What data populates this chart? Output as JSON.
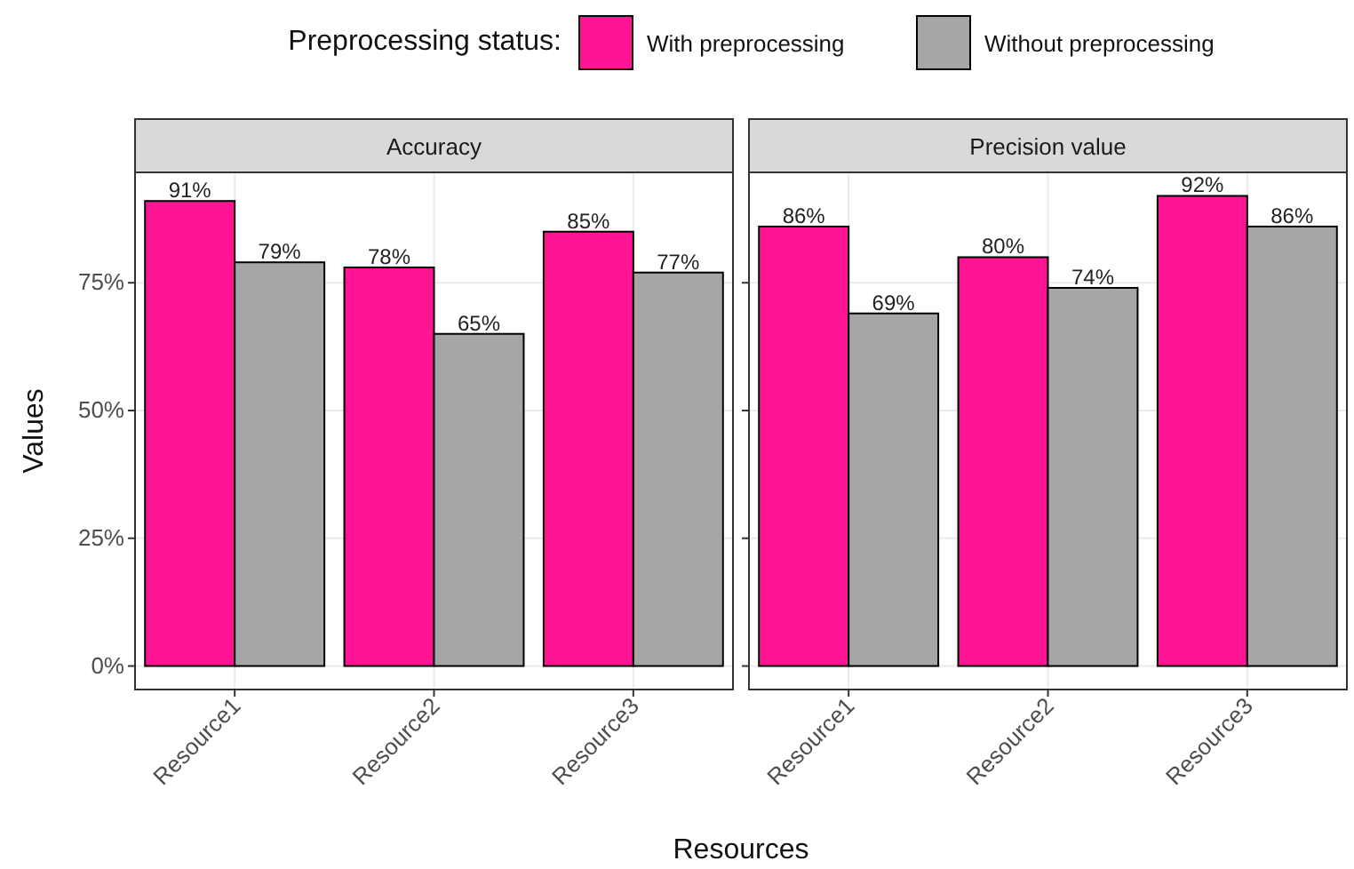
{
  "chart_data": [
    {
      "type": "bar",
      "title": "Accuracy",
      "ylabel": "Values",
      "xlabel": "Resources",
      "legend_title": "Preprocessing status:",
      "legend": "top",
      "grid": true,
      "categories": [
        "Resource1",
        "Resource2",
        "Resource3"
      ],
      "ylim": [
        -4.6,
        96.6
      ],
      "yticks": [
        {
          "value": 0,
          "label": "0%"
        },
        {
          "value": 25,
          "label": "25%"
        },
        {
          "value": 50,
          "label": "50%"
        },
        {
          "value": 75,
          "label": "75%"
        }
      ],
      "series": [
        {
          "name": "With preprocessing",
          "color": "#ff1493",
          "values": [
            91,
            78,
            85
          ],
          "value_labels": [
            "91%",
            "78%",
            "85%"
          ]
        },
        {
          "name": "Without preprocessing",
          "color": "#a6a6a6",
          "values": [
            79,
            65,
            77
          ],
          "value_labels": [
            "79%",
            "65%",
            "77%"
          ]
        }
      ]
    },
    {
      "type": "bar",
      "title": "Precision value",
      "grid": true,
      "tick_labels": "x",
      "categories": [
        "Resource1",
        "Resource2",
        "Resource3"
      ],
      "ylim": [
        -4.6,
        96.6
      ],
      "yticks": [
        {
          "value": 0,
          "label": null
        },
        {
          "value": 25,
          "label": null
        },
        {
          "value": 50,
          "label": null
        },
        {
          "value": 75,
          "label": null
        }
      ],
      "series": [
        {
          "color": "#ff1493",
          "values": [
            86,
            80,
            92
          ],
          "value_labels": [
            "86%",
            "80%",
            "92%"
          ]
        },
        {
          "color": "#a6a6a6",
          "values": [
            69,
            74,
            86
          ],
          "value_labels": [
            "69%",
            "74%",
            "86%"
          ]
        }
      ]
    }
  ]
}
